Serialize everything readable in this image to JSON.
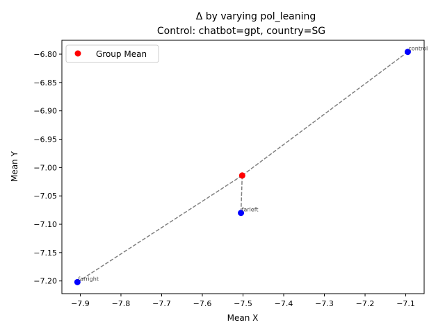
{
  "chart_data": {
    "type": "scatter",
    "title_line1": "Δ by varying pol_leaning",
    "title_line2": "Control: chatbot=gpt, country=SG",
    "xlabel": "Mean X",
    "ylabel": "Mean Y",
    "xlim": [
      -7.9452,
      -7.0548
    ],
    "ylim": [
      -7.2224,
      -6.7755
    ],
    "xticks": [
      -7.9,
      -7.8,
      -7.7,
      -7.6,
      -7.5,
      -7.4,
      -7.3,
      -7.2,
      -7.1
    ],
    "yticks": [
      -7.2,
      -7.15,
      -7.1,
      -7.05,
      -7.0,
      -6.95,
      -6.9,
      -6.85,
      -6.8
    ],
    "xtick_labels": [
      "−7.9",
      "−7.8",
      "−7.7",
      "−7.6",
      "−7.5",
      "−7.4",
      "−7.3",
      "−7.2",
      "−7.1"
    ],
    "ytick_labels": [
      "−7.20",
      "−7.15",
      "−7.10",
      "−7.05",
      "−7.00",
      "−6.95",
      "−6.90",
      "−6.85",
      "−6.80"
    ],
    "legend": {
      "label": "Group Mean",
      "placement": "top-left"
    },
    "group_mean": {
      "x": -7.502,
      "y": -7.014,
      "color": "#ff0000"
    },
    "points": [
      {
        "label": "control",
        "x": -7.095,
        "y": -6.796,
        "color": "#0000ff"
      },
      {
        "label": "farleft",
        "x": -7.505,
        "y": -7.08,
        "color": "#0000ff"
      },
      {
        "label": "farright",
        "x": -7.907,
        "y": -7.202,
        "color": "#0000ff"
      }
    ],
    "connector_color": "#808080"
  }
}
